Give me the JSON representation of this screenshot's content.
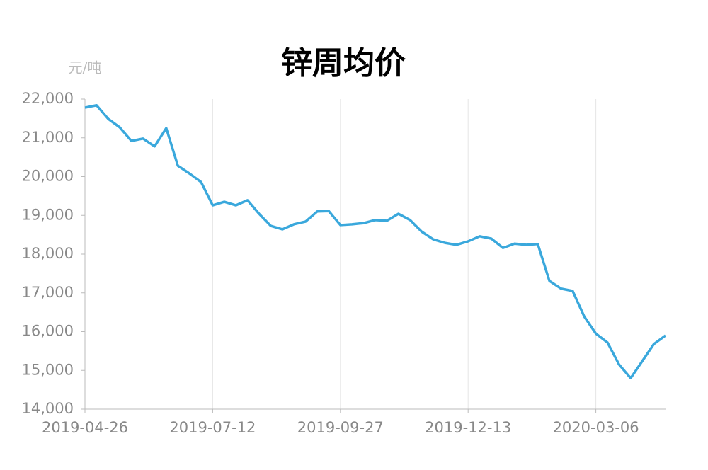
{
  "chart_data": {
    "type": "line",
    "title": "锌周均价",
    "y_unit_label": "元/吨",
    "categories": [
      "2019-04-26",
      null,
      null,
      null,
      null,
      null,
      null,
      null,
      null,
      null,
      null,
      "2019-07-12",
      null,
      null,
      null,
      null,
      null,
      null,
      null,
      null,
      null,
      null,
      "2019-09-27",
      null,
      null,
      null,
      null,
      null,
      null,
      null,
      null,
      null,
      null,
      "2019-12-13",
      null,
      null,
      null,
      null,
      null,
      null,
      null,
      null,
      null,
      null,
      "2020-03-06",
      null,
      null,
      null,
      null,
      null,
      null
    ],
    "series": [
      {
        "name": "锌周均价",
        "color": "#3aa8dc",
        "values": [
          21780,
          21840,
          21490,
          21270,
          20920,
          20980,
          20780,
          21250,
          20280,
          20080,
          19860,
          19260,
          19350,
          19260,
          19390,
          19040,
          18730,
          18640,
          18770,
          18840,
          19100,
          19110,
          18750,
          18770,
          18800,
          18880,
          18860,
          19040,
          18880,
          18580,
          18380,
          18290,
          18240,
          18330,
          18460,
          18400,
          18160,
          18270,
          18240,
          18260,
          17310,
          17110,
          17050,
          16390,
          15950,
          15720,
          15150,
          14800,
          15240,
          15680,
          15900
        ]
      }
    ],
    "ylim": [
      14000,
      22000
    ],
    "yticks": [
      {
        "value": 14000,
        "label": "14,000"
      },
      {
        "value": 15000,
        "label": "15,000"
      },
      {
        "value": 16000,
        "label": "16,000"
      },
      {
        "value": 17000,
        "label": "17,000"
      },
      {
        "value": 18000,
        "label": "18,000"
      },
      {
        "value": 19000,
        "label": "19,000"
      },
      {
        "value": 20000,
        "label": "20,000"
      },
      {
        "value": 21000,
        "label": "21,000"
      },
      {
        "value": 22000,
        "label": "22,000"
      }
    ],
    "grid": "x"
  }
}
